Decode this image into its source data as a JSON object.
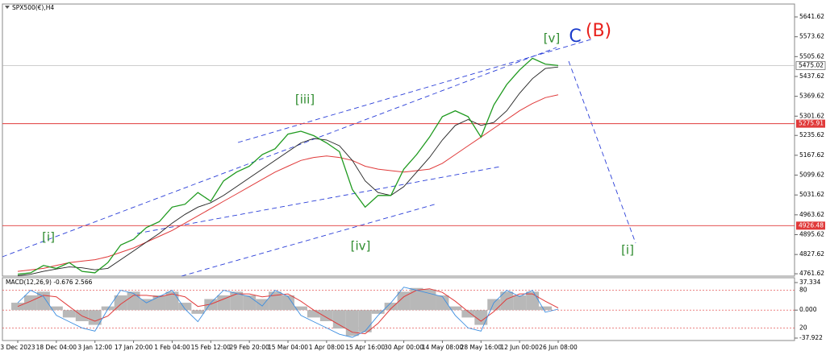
{
  "chart_data": {
    "type": "line",
    "title": "SPX500(€),H4",
    "categories": [
      "3 Dec 2023",
      null,
      null,
      "18 Dec 04:00",
      null,
      null,
      "3 Jan 12:00",
      null,
      null,
      "17 Jan 20:00",
      null,
      null,
      "1 Feb 04:00",
      null,
      null,
      "15 Feb 12:00",
      null,
      null,
      "29 Feb 20:00",
      null,
      null,
      "15 Mar 04:00",
      null,
      null,
      "1 Apr 08:00",
      null,
      null,
      "15 Apr 16:00",
      null,
      null,
      "30 Apr 00:00",
      null,
      null,
      "14 May 08:00",
      null,
      null,
      "28 May 16:00",
      null,
      null,
      "12 Jun 00:00",
      null,
      null,
      "26 Jun 08:00"
    ],
    "series": [
      {
        "color": "#1f9a1f",
        "values": [
          4760,
          4765,
          4790,
          4780,
          4800,
          4770,
          4765,
          4800,
          4860,
          4880,
          4920,
          4940,
          4990,
          5000,
          5040,
          5010,
          5080,
          5110,
          5130,
          5170,
          5190,
          5240,
          5250,
          5235,
          5210,
          5180,
          5050,
          4990,
          5030,
          5030,
          5120,
          5170,
          5230,
          5300,
          5320,
          5300,
          5230,
          5340,
          5410,
          5460,
          5500,
          5480,
          5475
        ]
      },
      {
        "color": "#222222",
        "values": [
          4755,
          4760,
          4770,
          4778,
          4785,
          4782,
          4775,
          4780,
          4810,
          4840,
          4870,
          4900,
          4935,
          4965,
          4990,
          5005,
          5030,
          5060,
          5090,
          5120,
          5150,
          5180,
          5210,
          5225,
          5220,
          5200,
          5150,
          5080,
          5040,
          5030,
          5060,
          5110,
          5160,
          5220,
          5270,
          5290,
          5270,
          5280,
          5320,
          5380,
          5430,
          5465,
          5470
        ]
      },
      {
        "color": "#e03a3a",
        "values": [
          4770,
          4775,
          4780,
          4790,
          4800,
          4805,
          4810,
          4820,
          4835,
          4850,
          4870,
          4890,
          4910,
          4935,
          4960,
          4985,
          5010,
          5035,
          5060,
          5085,
          5110,
          5130,
          5150,
          5160,
          5165,
          5160,
          5150,
          5130,
          5120,
          5115,
          5110,
          5115,
          5120,
          5140,
          5170,
          5200,
          5230,
          5260,
          5290,
          5320,
          5345,
          5365,
          5375
        ]
      }
    ],
    "ylim": [
      4753.6,
      5685.8
    ],
    "yticks": [
      5641.62,
      5573.62,
      5505.62,
      5437.62,
      5369.62,
      5301.62,
      5235.62,
      5167.62,
      5099.62,
      5031.62,
      4963.62,
      4895.62,
      4827.62,
      4761.62
    ],
    "current_price": 5475.02,
    "levels": [
      {
        "value": 5275.91,
        "color": "#e03a3a"
      },
      {
        "value": 4926.48,
        "color": "#e03a3a"
      }
    ],
    "annotations": [
      {
        "text": "[v]",
        "color": "#2e8b2e"
      },
      {
        "text": "C",
        "color": "#1c3ccc"
      },
      {
        "text": "(B)",
        "color": "#e8201c"
      },
      {
        "text": "[iii]",
        "color": "#2e8b2e"
      },
      {
        "text": "[iv]",
        "color": "#2e8b2e"
      },
      {
        "text": "[i]",
        "color": "#2e8b2e"
      },
      {
        "text": "[i]",
        "color": "#2e8b2e"
      }
    ],
    "indicator": {
      "title": "MACD(12,26,9) -0.676 2.566",
      "histogram": {
        "color": "#b8b8b8",
        "values": [
          10,
          20,
          25,
          5,
          -10,
          -15,
          -20,
          5,
          20,
          25,
          15,
          20,
          25,
          10,
          -5,
          15,
          20,
          25,
          20,
          15,
          25,
          20,
          5,
          -10,
          -15,
          -25,
          -35,
          -30,
          -5,
          10,
          25,
          30,
          28,
          20,
          5,
          -10,
          -20,
          15,
          25,
          20,
          25,
          5,
          0
        ]
      },
      "signal": {
        "color": "#e03a3a",
        "values": [
          5,
          12,
          20,
          18,
          5,
          -8,
          -15,
          -8,
          8,
          20,
          20,
          18,
          22,
          18,
          5,
          8,
          15,
          22,
          22,
          18,
          20,
          22,
          12,
          0,
          -10,
          -20,
          -30,
          -32,
          -18,
          2,
          18,
          27,
          29,
          24,
          12,
          -2,
          -15,
          -2,
          15,
          22,
          22,
          12,
          3
        ]
      },
      "oscillator": {
        "color": "#3c8ee0",
        "axis": "y2",
        "values": [
          60,
          80,
          70,
          40,
          30,
          20,
          15,
          50,
          80,
          75,
          60,
          70,
          80,
          50,
          30,
          60,
          80,
          75,
          70,
          55,
          80,
          70,
          40,
          30,
          20,
          10,
          5,
          15,
          40,
          60,
          85,
          80,
          75,
          70,
          40,
          20,
          15,
          60,
          80,
          70,
          80,
          45,
          50
        ]
      },
      "ylim": [
        -41.2,
        43.9
      ],
      "yticks": [
        37.334,
        {
          "value": 0,
          "label": "0.000"
        },
        -37.922
      ],
      "y2lim": [
        0,
        100
      ],
      "y2ticks": [
        80,
        20
      ]
    }
  }
}
